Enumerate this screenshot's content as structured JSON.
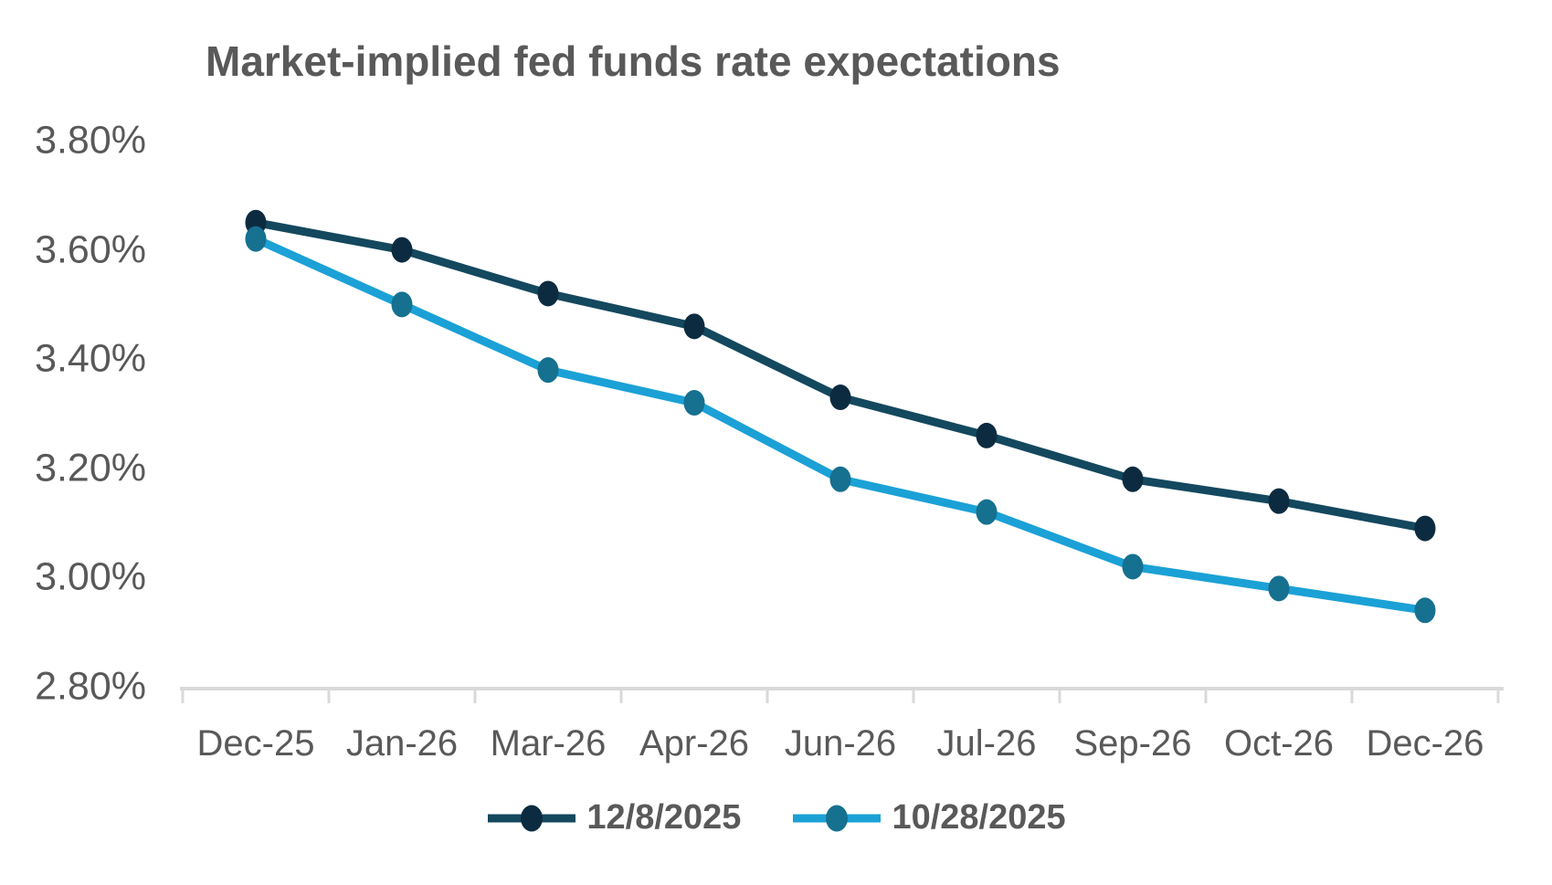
{
  "chart_data": {
    "type": "line",
    "title": "Market-implied fed funds rate expectations",
    "categories": [
      "Dec-25",
      "Jan-26",
      "Mar-26",
      "Apr-26",
      "Jun-26",
      "Jul-26",
      "Sep-26",
      "Oct-26",
      "Dec-26"
    ],
    "series": [
      {
        "name": "12/8/2025",
        "values": [
          3.65,
          3.6,
          3.52,
          3.46,
          3.33,
          3.26,
          3.18,
          3.14,
          3.09
        ],
        "line_color": "#14485E",
        "marker_color": "#0D2B40"
      },
      {
        "name": "10/28/2025",
        "values": [
          3.62,
          3.5,
          3.38,
          3.32,
          3.18,
          3.12,
          3.02,
          2.98,
          2.94
        ],
        "line_color": "#1BA1D6",
        "marker_color": "#16708F"
      }
    ],
    "y_axis": {
      "min": 2.8,
      "max": 3.8,
      "step": 0.2,
      "tick_labels": [
        "3.80%",
        "3.60%",
        "3.40%",
        "3.20%",
        "3.00%",
        "2.80%"
      ]
    },
    "x_axis": {
      "tick_labels": [
        "Dec-25",
        "Jan-26",
        "Mar-26",
        "Apr-26",
        "Jun-26",
        "Jul-26",
        "Sep-26",
        "Oct-26",
        "Dec-26"
      ]
    },
    "legend_position": "bottom",
    "grid": "off",
    "colors": {
      "text": "#595959",
      "axis_line": "#D9D9D9",
      "background": "#FFFFFF"
    },
    "ylim": [
      2.8,
      3.8
    ]
  }
}
